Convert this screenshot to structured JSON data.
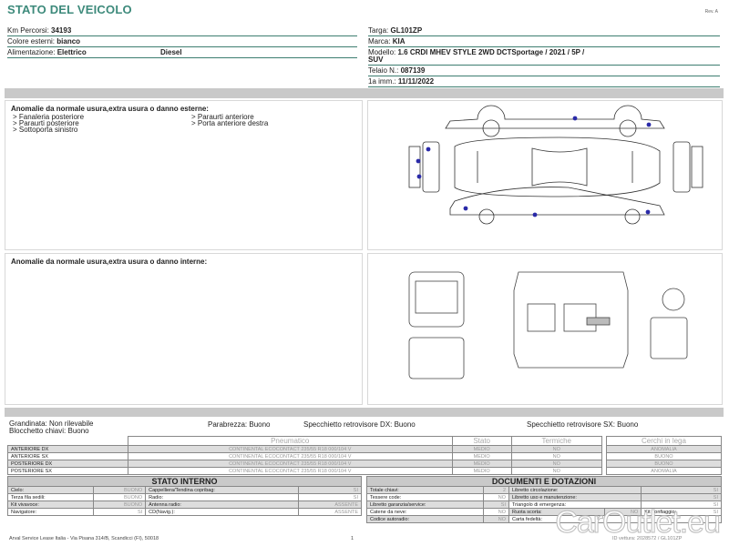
{
  "header": {
    "title": "STATO DEL VEICOLO",
    "rev": "Rev. A"
  },
  "vehicle_left": [
    {
      "label": "Km Percorsi:",
      "value": "34193"
    },
    {
      "label": "Colore esterni:",
      "value": "bianco"
    },
    {
      "label": "Alimentazione:",
      "value": "Elettrico",
      "extra": "Diesel"
    }
  ],
  "vehicle_right": [
    {
      "label": "Targa:",
      "value": "GL101ZP"
    },
    {
      "label": "Marca:",
      "value": "KIA"
    },
    {
      "label": "Modello:",
      "value": "1.6 CRDI MHEV STYLE 2WD DCTSportage / 2021 / 5P /",
      "cont": "SUV"
    },
    {
      "label": "Telaio N.:",
      "value": "087139"
    },
    {
      "label": "1a imm.:",
      "value": "11/11/2022"
    }
  ],
  "exterior": {
    "title": "Anomalie da normale usura,extra usura o danno esterne:",
    "col1": [
      "> Fanaleria posteriore",
      "> Paraurti posteriore",
      "> Sottoporta sinistro"
    ],
    "col2": [
      "> Paraurti anteriore",
      "> Porta anteriore destra"
    ],
    "marker_color": "#2a2aa8"
  },
  "interior": {
    "title": "Anomalie da normale usura,extra usura o danno interne:"
  },
  "checks": {
    "grandinata": "Grandinata: Non rilevabile",
    "blocchetto": "Blocchetto chiavi: Buono",
    "parabrezza": "Parabrezza: Buono",
    "spec_dx": "Specchietto retrovisore DX: Buono",
    "spec_sx": "Specchietto retrovisore SX: Buono"
  },
  "tyres": {
    "headers": [
      "Pneumatico",
      "Stato",
      "Termiche",
      "Cerchi in lega"
    ],
    "rows": [
      {
        "pos": "ANTERIORE DX",
        "tyre": "CONTINENTAL ECOCONTACT  235/55 R18 000/104 V",
        "stato": "MEDIO",
        "termiche": "NO",
        "cerchi": "ANOMALIA"
      },
      {
        "pos": "ANTERIORE SX",
        "tyre": "CONTINENTAL ECOCONTACT  235/55 R18 000/104 V",
        "stato": "MEDIO",
        "termiche": "NO",
        "cerchi": "BUONO"
      },
      {
        "pos": "POSTERIORE DX",
        "tyre": "CONTINENTAL ECOCONTACT  235/55 R18 000/104 V",
        "stato": "MEDIO",
        "termiche": "NO",
        "cerchi": "BUONO"
      },
      {
        "pos": "POSTERIORE SX",
        "tyre": "CONTINENTAL ECOCONTACT  235/55 R18 000/104 V",
        "stato": "MEDIO",
        "termiche": "NO",
        "cerchi": "ANOMALIA"
      }
    ]
  },
  "stato_interno": {
    "title": "STATO INTERNO",
    "rows": [
      [
        "Cielo:",
        "BUONO",
        "Cappelliera/Tendina copribag:",
        "SI"
      ],
      [
        "Terza fila sedili:",
        "BUONO",
        "Radio:",
        "SI"
      ],
      [
        "Kit vivavoce:",
        "BUONO",
        "Antenna radio:",
        "ASSENTE"
      ],
      [
        "Navigatore:",
        "SI",
        "CD(Navig.):",
        "ASSENTE"
      ]
    ]
  },
  "documenti": {
    "title": "DOCUMENTI E DOTAZIONI",
    "rows": [
      [
        "Totale chiavi:",
        "2",
        "Libretto circolazione:",
        "SI"
      ],
      [
        "Tessere code:",
        "NO",
        "Libretto uso e manutenzione:",
        "SI"
      ],
      [
        "Libretto garanzia/service:",
        "SI",
        "Triangolo di emergenza:",
        "SI"
      ],
      [
        "Catene da neve:",
        "NO",
        "Ruota scorta:",
        "NO",
        "Kit gonfiaggio:",
        "SI"
      ],
      [
        "Codice autoradio:",
        "NO",
        "Carta fedeltà:",
        ""
      ]
    ]
  },
  "footer": {
    "address": "Arval Service Lease Italia - Via Pisana 314/B, Scandicci (FI), 50018",
    "page": "1",
    "id": "ID vettura: 2028572 / GL101ZP"
  },
  "watermark": "CarOutlet.eu"
}
